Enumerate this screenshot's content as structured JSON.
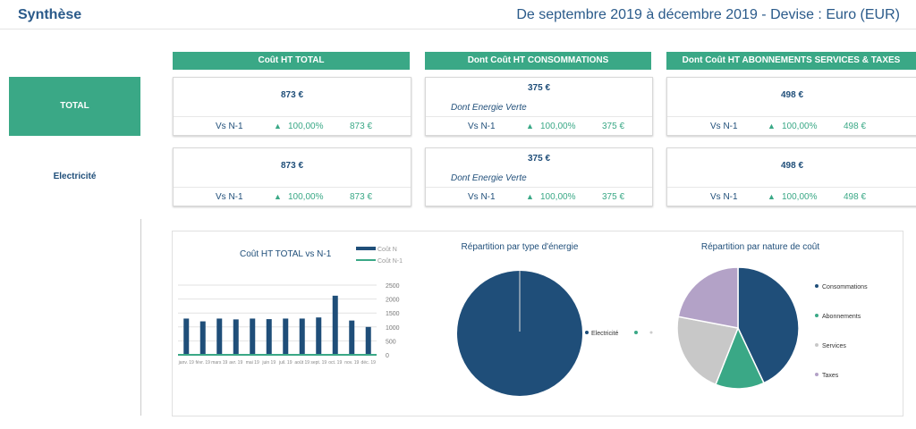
{
  "header": {
    "title": "Synthèse",
    "period": "De septembre 2019 à décembre 2019 - Devise : Euro (EUR)"
  },
  "columns": [
    "Coût HT TOTAL",
    "Dont Coût HT CONSOMMATIONS",
    "Dont Coût HT ABONNEMENTS SERVICES & TAXES"
  ],
  "rows": [
    {
      "label": "TOTAL",
      "cards": [
        {
          "value": "873 €",
          "vs": "Vs N-1",
          "pct": "100,00%",
          "prev": "873 €"
        },
        {
          "value": "375 €",
          "green": "Dont Energie Verte",
          "vs": "Vs N-1",
          "pct": "100,00%",
          "prev": "375 €"
        },
        {
          "value": "498 €",
          "vs": "Vs N-1",
          "pct": "100,00%",
          "prev": "498 €"
        }
      ]
    },
    {
      "label": "Electricité",
      "cards": [
        {
          "value": "873 €",
          "vs": "Vs N-1",
          "pct": "100,00%",
          "prev": "873 €"
        },
        {
          "value": "375 €",
          "green": "Dont Energie Verte",
          "vs": "Vs N-1",
          "pct": "100,00%",
          "prev": "375 €"
        },
        {
          "value": "498 €",
          "vs": "Vs N-1",
          "pct": "100,00%",
          "prev": "498 €"
        }
      ]
    }
  ],
  "colors": {
    "teal": "#3aa886",
    "navy": "#1f4e79",
    "gray": "#c8c8c8",
    "purple": "#b3a2c7"
  },
  "chart_data": [
    {
      "type": "bar",
      "title": "Coût HT TOTAL vs N-1",
      "legend": [
        "Coût N",
        "Coût N-1"
      ],
      "categories": [
        "janv. 19",
        "févr. 19",
        "mars 19",
        "avr. 19",
        "mai 19",
        "juin 19",
        "juil. 19",
        "août 19",
        "sept. 19",
        "oct. 19",
        "nov. 19",
        "déc. 19"
      ],
      "series": [
        {
          "name": "Coût N",
          "values": [
            1300,
            1200,
            1300,
            1270,
            1300,
            1280,
            1300,
            1300,
            1340,
            2120,
            1230,
            1000
          ]
        },
        {
          "name": "Coût N-1",
          "values": [
            0,
            0,
            0,
            0,
            0,
            0,
            0,
            0,
            0,
            0,
            0,
            0
          ]
        }
      ],
      "yticks": [
        "0",
        "500",
        "1000",
        "1500",
        "2000",
        "2500"
      ],
      "ylim": [
        0,
        2500
      ]
    },
    {
      "type": "pie",
      "title": "Répartition par type d'énergie",
      "labels": [
        "Electricité",
        ""
      ],
      "values": [
        100,
        0
      ]
    },
    {
      "type": "pie",
      "title": "Répartition par nature de coût",
      "labels": [
        "Consommations",
        "Abonnements",
        "Services",
        "Taxes"
      ],
      "values": [
        43,
        13,
        22,
        22
      ]
    }
  ]
}
